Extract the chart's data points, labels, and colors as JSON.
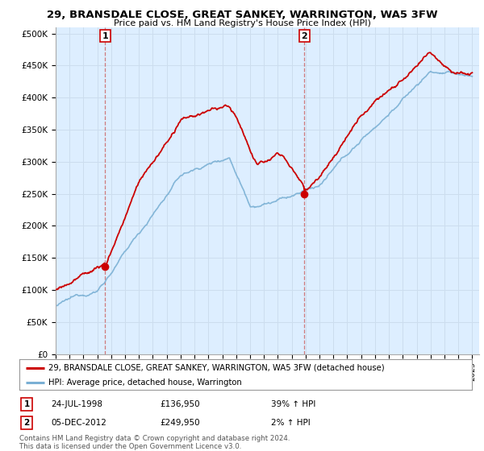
{
  "title": "29, BRANSDALE CLOSE, GREAT SANKEY, WARRINGTON, WA5 3FW",
  "subtitle": "Price paid vs. HM Land Registry's House Price Index (HPI)",
  "ylabel_ticks": [
    "£0",
    "£50K",
    "£100K",
    "£150K",
    "£200K",
    "£250K",
    "£300K",
    "£350K",
    "£400K",
    "£450K",
    "£500K"
  ],
  "ytick_values": [
    0,
    50000,
    100000,
    150000,
    200000,
    250000,
    300000,
    350000,
    400000,
    450000,
    500000
  ],
  "ylim": [
    0,
    510000
  ],
  "purchase1_x": 1998.56,
  "purchase1_price": 136950,
  "purchase2_x": 2012.92,
  "purchase2_price": 249950,
  "red_line_color": "#cc0000",
  "blue_line_color": "#7ab0d4",
  "grid_color": "#ccddee",
  "bg_color": "#ffffff",
  "plot_bg_color": "#ddeeff",
  "legend_label_red": "29, BRANSDALE CLOSE, GREAT SANKEY, WARRINGTON, WA5 3FW (detached house)",
  "legend_label_blue": "HPI: Average price, detached house, Warrington",
  "footer": "Contains HM Land Registry data © Crown copyright and database right 2024.\nThis data is licensed under the Open Government Licence v3.0.",
  "table_row1": [
    "1",
    "24-JUL-1998",
    "£136,950",
    "39% ↑ HPI"
  ],
  "table_row2": [
    "2",
    "05-DEC-2012",
    "£249,950",
    "2% ↑ HPI"
  ],
  "xmin": 1995.0,
  "xmax": 2025.5
}
